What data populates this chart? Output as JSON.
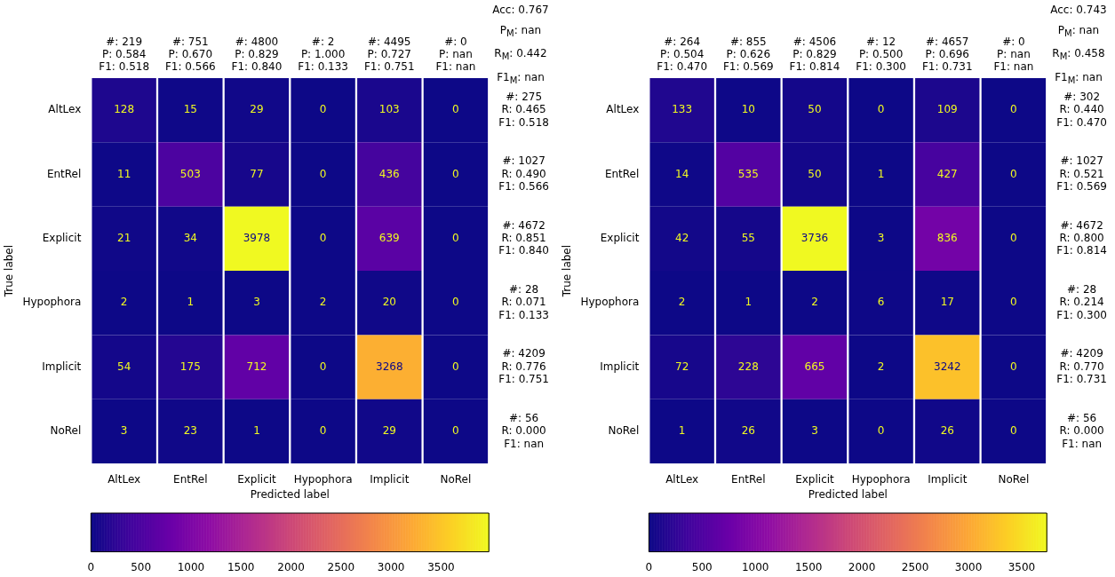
{
  "chart_data": [
    {
      "type": "heatmap",
      "xlabel": "Predicted label",
      "ylabel": "True label",
      "categories": [
        "AltLex",
        "EntRel",
        "Explicit",
        "Hypophora",
        "Implicit",
        "NoRel"
      ],
      "y_categories": [
        "AltLex",
        "EntRel",
        "Explicit",
        "Hypophora",
        "Implicit",
        "NoRel"
      ],
      "y2_categories": [
        "#: 275\nR: 0.465\nF1: 0.518",
        "#: 1027\nR: 0.490\nF1: 0.566",
        "#: 4672\nR: 0.851\nF1: 0.840",
        "#: 28\nR: 0.071\nF1: 0.133",
        "#: 4209\nR: 0.776\nF1: 0.751",
        "#: 56\nR: 0.000\nF1: nan"
      ],
      "cells": [
        [
          128,
          15,
          29,
          0,
          103,
          0
        ],
        [
          11,
          503,
          77,
          0,
          436,
          0
        ],
        [
          21,
          34,
          3978,
          0,
          639,
          0
        ],
        [
          2,
          1,
          3,
          2,
          20,
          0
        ],
        [
          54,
          175,
          712,
          0,
          3268,
          0
        ],
        [
          3,
          23,
          1,
          0,
          29,
          0
        ]
      ],
      "data_labels": true,
      "clim": [
        0,
        3978
      ],
      "cticks": [
        0,
        500,
        1000,
        1500,
        2000,
        2500,
        3000,
        3500
      ],
      "annotations": [
        "#: 219\nP: 0.584\nF1: 0.518",
        "#: 751\nP: 0.670\nF1: 0.566",
        "#: 4800\nP: 0.829\nF1: 0.840",
        "#: 2\nP: 1.000\nF1: 0.133",
        "#: 4495\nP: 0.727\nF1: 0.751",
        "#: 0\nP: nan\nF1: nan",
        "Acc: 0.767\nP$_{M}$: nan\nR$_{M}$: 0.442\nF1$_{M}$: nan"
      ]
    },
    {
      "type": "heatmap",
      "xlabel": "Predicted label",
      "ylabel": "True label",
      "categories": [
        "AltLex",
        "EntRel",
        "Explicit",
        "Hypophora",
        "Implicit",
        "NoRel"
      ],
      "y_categories": [
        "AltLex",
        "EntRel",
        "Explicit",
        "Hypophora",
        "Implicit",
        "NoRel"
      ],
      "y2_categories": [
        "#: 302\nR: 0.440\nF1: 0.470",
        "#: 1027\nR: 0.521\nF1: 0.569",
        "#: 4672\nR: 0.800\nF1: 0.814",
        "#: 28\nR: 0.214\nF1: 0.300",
        "#: 4209\nR: 0.770\nF1: 0.731",
        "#: 56\nR: 0.000\nF1: nan"
      ],
      "cells": [
        [
          133,
          10,
          50,
          0,
          109,
          0
        ],
        [
          14,
          535,
          50,
          1,
          427,
          0
        ],
        [
          42,
          55,
          3736,
          3,
          836,
          0
        ],
        [
          2,
          1,
          2,
          6,
          17,
          0
        ],
        [
          72,
          228,
          665,
          2,
          3242,
          0
        ],
        [
          1,
          26,
          3,
          0,
          26,
          0
        ]
      ],
      "data_labels": true,
      "clim": [
        0,
        3736
      ],
      "cticks": [
        0,
        500,
        1000,
        1500,
        2000,
        2500,
        3000,
        3500
      ],
      "annotations": [
        "#: 264\nP: 0.504\nF1: 0.470",
        "#: 855\nP: 0.626\nF1: 0.569",
        "#: 4506\nP: 0.829\nF1: 0.814",
        "#: 12\nP: 0.500\nF1: 0.300",
        "#: 4657\nP: 0.696\nF1: 0.731",
        "#: 0\nP: nan\nF1: nan",
        "Acc: 0.743\nP$_{M}$: nan\nR$_{M}$: 0.458\nF1$_{M}$: nan"
      ]
    }
  ]
}
